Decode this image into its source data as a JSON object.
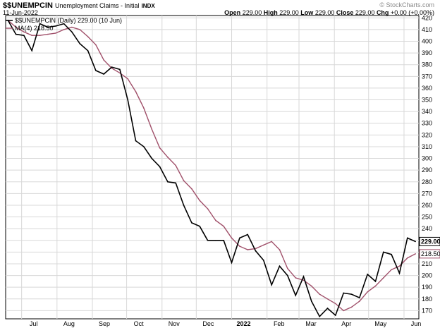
{
  "header": {
    "symbol": "$$UNEMPCIN",
    "description": "Unemployment Claims - Initial",
    "exchange": "INDX",
    "date": "11-Jun-2022",
    "copyright": "© StockCharts.com",
    "open_label": "Open",
    "open_value": "229.00",
    "high_label": "High",
    "high_value": "229.00",
    "low_label": "Low",
    "low_value": "229.00",
    "close_label": "Close",
    "close_value": "229.00",
    "chg_label": "Chg",
    "chg_value": "+0.00 (+0.00%)"
  },
  "legend": {
    "series_label": "$$UNEMPCIN (Daily) 229.00 (10 Jun)",
    "ma_label": "MA(4) 218.50"
  },
  "colors": {
    "price_line": "#000000",
    "ma_line": "#a0506a",
    "grid": "#d8d8d8",
    "price_label_bg": "#ffffff",
    "ma_label_bg": "#ffffff"
  },
  "chart_data": {
    "type": "line",
    "title": "Unemployment Claims - Initial",
    "x_tick_labels": [
      "Jul",
      "Aug",
      "Sep",
      "Oct",
      "Nov",
      "Dec",
      "2022",
      "Feb",
      "Mar",
      "Apr",
      "May",
      "Jun"
    ],
    "y_tick_labels": [
      "170",
      "180",
      "190",
      "200",
      "210",
      "220",
      "230",
      "240",
      "250",
      "260",
      "270",
      "280",
      "290",
      "300",
      "310",
      "320",
      "330",
      "340",
      "350",
      "360",
      "370",
      "380",
      "390",
      "400",
      "410",
      "420"
    ],
    "ylim": [
      163,
      422
    ],
    "y_scale": "linear",
    "grid": true,
    "legend_position": "top-left",
    "last_price_label": "229.00",
    "last_ma_label": "218.50",
    "series": [
      {
        "name": "$$UNEMPCIN (Daily)",
        "x": [
          "2021-06-19",
          "2021-06-26",
          "2021-07-03",
          "2021-07-10",
          "2021-07-17",
          "2021-07-24",
          "2021-07-31",
          "2021-08-07",
          "2021-08-14",
          "2021-08-21",
          "2021-08-28",
          "2021-09-04",
          "2021-09-11",
          "2021-09-18",
          "2021-09-25",
          "2021-10-02",
          "2021-10-09",
          "2021-10-16",
          "2021-10-23",
          "2021-10-30",
          "2021-11-06",
          "2021-11-13",
          "2021-11-20",
          "2021-11-27",
          "2021-12-04",
          "2021-12-11",
          "2021-12-18",
          "2021-12-25",
          "2022-01-01",
          "2022-01-08",
          "2022-01-15",
          "2022-01-22",
          "2022-01-29",
          "2022-02-05",
          "2022-02-12",
          "2022-02-19",
          "2022-02-26",
          "2022-03-05",
          "2022-03-12",
          "2022-03-19",
          "2022-03-26",
          "2022-04-02",
          "2022-04-09",
          "2022-04-16",
          "2022-04-23",
          "2022-04-30",
          "2022-05-07",
          "2022-05-14",
          "2022-05-21",
          "2022-05-28",
          "2022-06-04",
          "2022-06-11"
        ],
        "values": [
          418,
          406,
          405,
          392,
          415,
          412,
          413,
          415,
          408,
          398,
          392,
          375,
          372,
          378,
          376,
          350,
          315,
          310,
          300,
          293,
          280,
          279,
          260,
          245,
          242,
          230,
          230,
          230,
          211,
          232,
          235,
          221,
          213,
          192,
          208,
          200,
          183,
          199,
          178,
          165,
          172,
          166,
          185,
          184,
          181,
          201,
          195,
          220,
          218,
          202,
          232,
          229
        ]
      },
      {
        "name": "MA(4)",
        "x": [
          "2021-06-19",
          "2021-06-26",
          "2021-07-03",
          "2021-07-10",
          "2021-07-17",
          "2021-07-24",
          "2021-07-31",
          "2021-08-07",
          "2021-08-14",
          "2021-08-21",
          "2021-08-28",
          "2021-09-04",
          "2021-09-11",
          "2021-09-18",
          "2021-09-25",
          "2021-10-02",
          "2021-10-09",
          "2021-10-16",
          "2021-10-23",
          "2021-10-30",
          "2021-11-06",
          "2021-11-13",
          "2021-11-20",
          "2021-11-27",
          "2021-12-04",
          "2021-12-11",
          "2021-12-18",
          "2021-12-25",
          "2022-01-01",
          "2022-01-08",
          "2022-01-15",
          "2022-01-22",
          "2022-01-29",
          "2022-02-05",
          "2022-02-12",
          "2022-02-19",
          "2022-02-26",
          "2022-03-05",
          "2022-03-12",
          "2022-03-19",
          "2022-03-26",
          "2022-04-02",
          "2022-04-09",
          "2022-04-16",
          "2022-04-23",
          "2022-04-30",
          "2022-05-07",
          "2022-05-14",
          "2022-05-21",
          "2022-05-28",
          "2022-06-04",
          "2022-06-11"
        ],
        "values": [
          418,
          412,
          408,
          405,
          405,
          406,
          407,
          410,
          412,
          410,
          404,
          397,
          384,
          377,
          373,
          368,
          357,
          343,
          325,
          309,
          301,
          294,
          281,
          274,
          264,
          257,
          247,
          242,
          232,
          225,
          222,
          223,
          226,
          229,
          222,
          206,
          198,
          196,
          191,
          184,
          180,
          176,
          170,
          173,
          178,
          186,
          191,
          198,
          205,
          208,
          215,
          218.5
        ]
      }
    ]
  }
}
